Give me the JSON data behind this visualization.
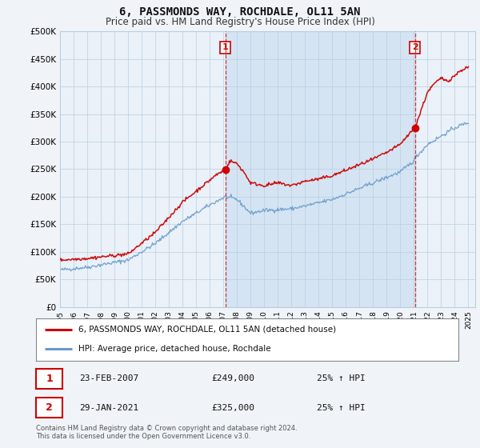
{
  "title": "6, PASSMONDS WAY, ROCHDALE, OL11 5AN",
  "subtitle": "Price paid vs. HM Land Registry's House Price Index (HPI)",
  "ylabel_ticks": [
    "£0",
    "£50K",
    "£100K",
    "£150K",
    "£200K",
    "£250K",
    "£300K",
    "£350K",
    "£400K",
    "£450K",
    "£500K"
  ],
  "ytick_values": [
    0,
    50000,
    100000,
    150000,
    200000,
    250000,
    300000,
    350000,
    400000,
    450000,
    500000
  ],
  "ylim": [
    0,
    500000
  ],
  "xlim_start": 1995.0,
  "xlim_end": 2025.5,
  "background_color": "#f0f4f8",
  "plot_bg_color": "#eaf1f8",
  "grid_color": "#b8cfe0",
  "red_line_color": "#cc0000",
  "blue_line_color": "#6699cc",
  "marker1_x": 2007.15,
  "marker1_y": 249000,
  "marker2_x": 2021.08,
  "marker2_y": 325000,
  "legend_label_red": "6, PASSMONDS WAY, ROCHDALE, OL11 5AN (detached house)",
  "legend_label_blue": "HPI: Average price, detached house, Rochdale",
  "table_rows": [
    {
      "num": "1",
      "date": "23-FEB-2007",
      "price": "£249,000",
      "hpi": "25% ↑ HPI"
    },
    {
      "num": "2",
      "date": "29-JAN-2021",
      "price": "£325,000",
      "hpi": "25% ↑ HPI"
    }
  ],
  "footnote": "Contains HM Land Registry data © Crown copyright and database right 2024.\nThis data is licensed under the Open Government Licence v3.0."
}
